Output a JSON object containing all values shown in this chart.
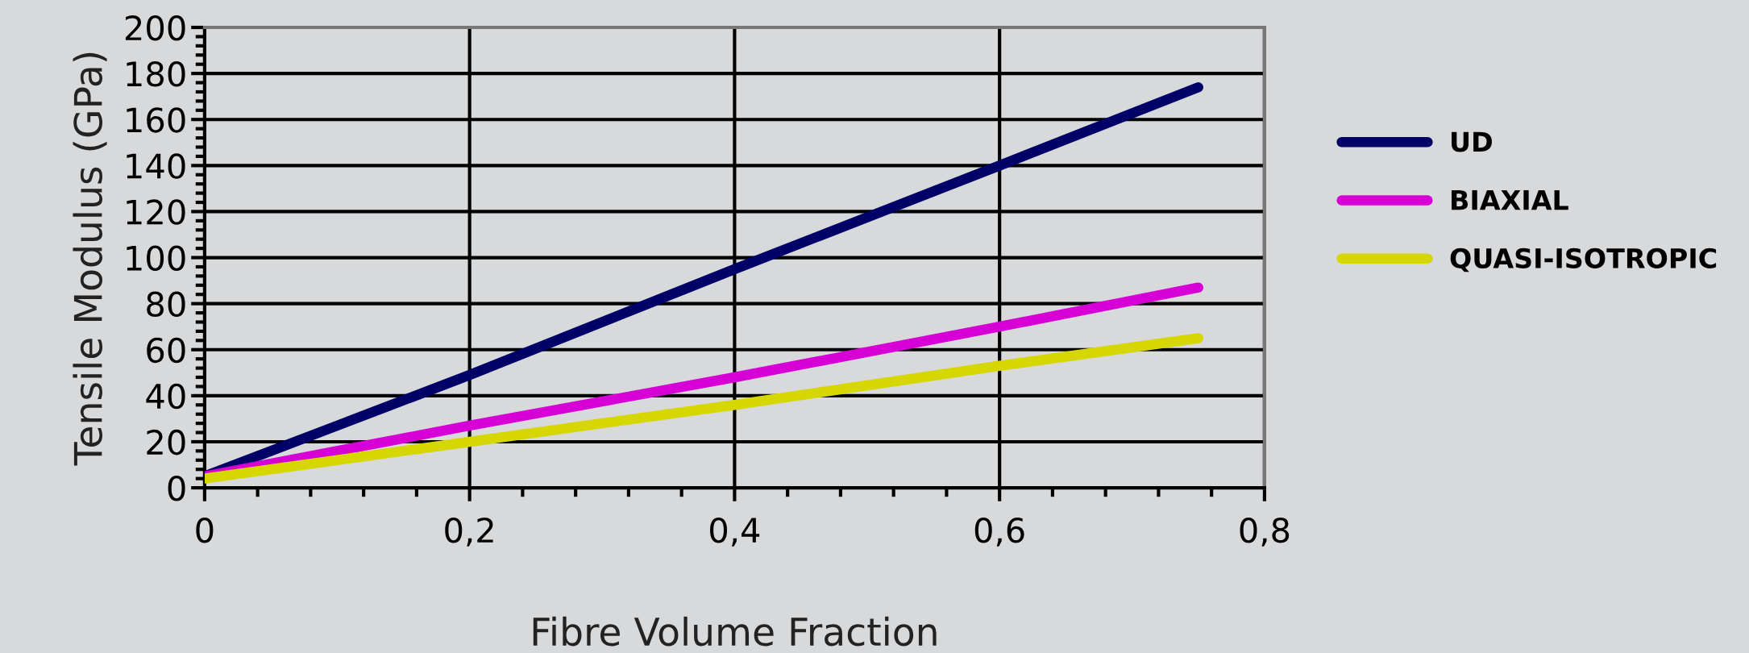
{
  "chart_data": {
    "type": "line",
    "xlabel": "Fibre Volume Fraction",
    "ylabel": "Tensile Modulus (GPa)",
    "x": [
      0,
      0.1,
      0.2,
      0.4,
      0.6,
      0.75
    ],
    "series": [
      {
        "name": "UD",
        "color": "#000066",
        "values": [
          5,
          27,
          49,
          95,
          140,
          174
        ]
      },
      {
        "name": "BIAXIAL",
        "color": "#d600d6",
        "values": [
          5,
          16,
          27,
          48,
          70,
          87
        ]
      },
      {
        "name": "QUASI-ISOTROPIC",
        "color": "#d6d600",
        "values": [
          4,
          12,
          20,
          36,
          53,
          65
        ]
      }
    ],
    "xlim": [
      0,
      0.8
    ],
    "xticks": [
      {
        "value": 0,
        "label": "0"
      },
      {
        "value": 0.2,
        "label": "0,2"
      },
      {
        "value": 0.4,
        "label": "0,4"
      },
      {
        "value": 0.6,
        "label": "0,6"
      },
      {
        "value": 0.8,
        "label": "0,8"
      }
    ],
    "ylim": [
      0,
      200
    ],
    "yticks": [
      0,
      20,
      40,
      60,
      80,
      100,
      120,
      140,
      160,
      180,
      200
    ],
    "grid": true,
    "legend": "right",
    "line_style": "solid"
  }
}
